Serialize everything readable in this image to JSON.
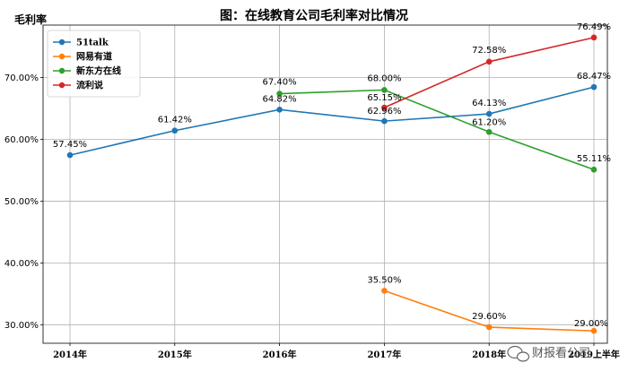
{
  "chart_data": {
    "type": "line",
    "title": "图：在线教育公司毛利率对比情况",
    "ylabel": "毛利率",
    "xlabel": "",
    "categories": [
      "2014年",
      "2015年",
      "2016年",
      "2017年",
      "2018年",
      "2019上半年"
    ],
    "ylim": [
      27.0,
      78.5
    ],
    "yticks": [
      "30.00%",
      "40.00%",
      "50.00%",
      "60.00%",
      "70.00%"
    ],
    "ytick_values": [
      30,
      40,
      50,
      60,
      70
    ],
    "grid": true,
    "legend_position": "top-left",
    "series": [
      {
        "name": "51talk",
        "color": "#1f77b4",
        "values": [
          57.45,
          61.42,
          64.82,
          62.96,
          64.13,
          68.47
        ],
        "labels": [
          "57.45%",
          "61.42%",
          "64.82%",
          "62.96%",
          "64.13%",
          "68.47%"
        ]
      },
      {
        "name": "网易有道",
        "color": "#ff7f0e",
        "values": [
          null,
          null,
          null,
          35.5,
          29.6,
          29.0
        ],
        "labels": [
          "",
          "",
          "",
          "35.50%",
          "29.60%",
          "29.00%"
        ]
      },
      {
        "name": "新东方在线",
        "color": "#2ca02c",
        "values": [
          null,
          null,
          67.4,
          68.0,
          61.2,
          55.11
        ],
        "labels": [
          "",
          "",
          "67.40%",
          "68.00%",
          "61.20%",
          "55.11%"
        ]
      },
      {
        "name": "流利说",
        "color": "#d62728",
        "values": [
          null,
          null,
          null,
          65.15,
          72.58,
          76.49
        ],
        "labels": [
          "",
          "",
          "",
          "65.15%",
          "72.58%",
          "76.49%"
        ]
      }
    ]
  },
  "watermark": {
    "text": "财报看公司",
    "icon": "wechat-icon"
  }
}
